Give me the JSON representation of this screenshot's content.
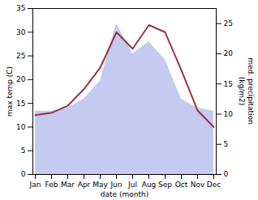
{
  "chart_data": {
    "type": "line",
    "xlabel": "date (month)",
    "ylabel": "max temp (C)",
    "y2label": "med. precipitation\n(kg/m2)",
    "categories": [
      "Jan",
      "Feb",
      "Mar",
      "Apr",
      "May",
      "Jun",
      "Jul",
      "Aug",
      "Sep",
      "Oct",
      "Nov",
      "Dec"
    ],
    "series": [
      {
        "type": "area",
        "axis": "y2",
        "color": "#c5caf0",
        "values": [
          10.5,
          10.5,
          11.0,
          12.5,
          15.5,
          25.0,
          20.0,
          22.0,
          19.0,
          12.5,
          11.0,
          10.5
        ]
      },
      {
        "type": "line",
        "color": "#993344",
        "values": [
          12.5,
          13.0,
          14.5,
          18.0,
          22.5,
          30.0,
          26.5,
          31.5,
          30.0,
          22.0,
          13.5,
          10.0
        ]
      }
    ],
    "ylim": [
      0,
      35
    ],
    "yticks": [
      0,
      5,
      10,
      15,
      20,
      25,
      30,
      35
    ],
    "y2lim": [
      0,
      27.5
    ],
    "y2ticks": [
      0,
      5,
      10,
      15,
      20,
      25
    ]
  }
}
